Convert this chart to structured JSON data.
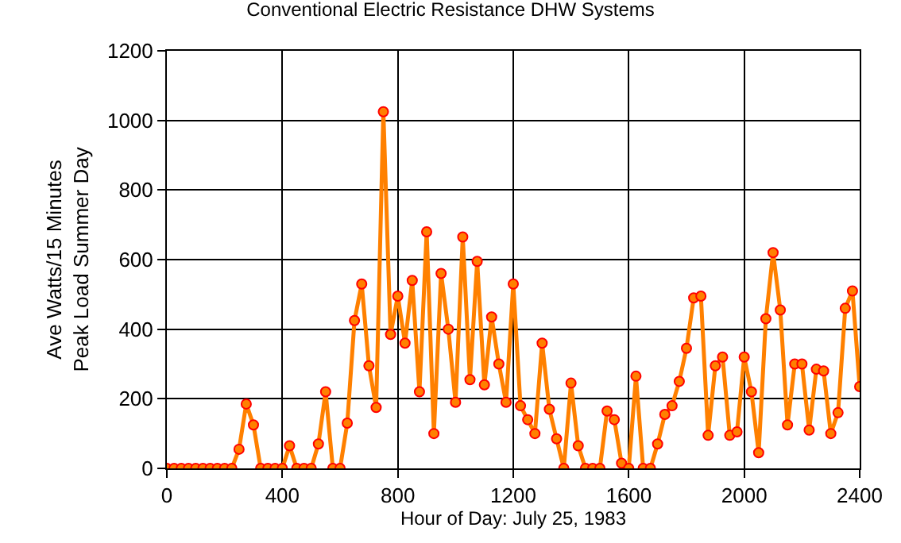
{
  "chart_data": {
    "type": "line",
    "title": "Conventional Electric Resistance DHW Systems",
    "xlabel": "Hour of Day: July 25, 1983",
    "ylabel": "Ave Watts/15 Minutes\nPeak Load Summer Day",
    "x": [
      0,
      25,
      50,
      75,
      100,
      125,
      150,
      175,
      200,
      225,
      250,
      275,
      300,
      325,
      350,
      375,
      400,
      425,
      450,
      475,
      500,
      525,
      550,
      575,
      600,
      625,
      650,
      675,
      700,
      725,
      750,
      775,
      800,
      825,
      850,
      875,
      900,
      925,
      950,
      975,
      1000,
      1025,
      1050,
      1075,
      1100,
      1125,
      1150,
      1175,
      1200,
      1225,
      1250,
      1275,
      1300,
      1325,
      1350,
      1375,
      1400,
      1425,
      1450,
      1475,
      1500,
      1525,
      1550,
      1575,
      1600,
      1625,
      1650,
      1675,
      1700,
      1725,
      1750,
      1775,
      1800,
      1825,
      1850,
      1875,
      1900,
      1925,
      1950,
      1975,
      2000,
      2025,
      2050,
      2075,
      2100,
      2125,
      2150,
      2175,
      2200,
      2225,
      2250,
      2275,
      2300,
      2325,
      2350,
      2375,
      2400
    ],
    "series": [
      {
        "color": "#ff8000",
        "values": [
          0,
          0,
          0,
          0,
          0,
          0,
          0,
          0,
          0,
          0,
          55,
          185,
          125,
          0,
          0,
          0,
          0,
          65,
          0,
          0,
          0,
          70,
          220,
          0,
          0,
          130,
          425,
          530,
          295,
          175,
          1025,
          385,
          495,
          360,
          540,
          220,
          680,
          100,
          560,
          400,
          190,
          665,
          255,
          595,
          240,
          435,
          300,
          190,
          530,
          180,
          140,
          100,
          360,
          170,
          85,
          0,
          245,
          65,
          0,
          0,
          0,
          165,
          140,
          15,
          0,
          265,
          0,
          0,
          70,
          155,
          180,
          250,
          345,
          490,
          495,
          95,
          295,
          320,
          95,
          105,
          320,
          220,
          45,
          430,
          620,
          455,
          125,
          300,
          300,
          110,
          285,
          280,
          100,
          160,
          460,
          510,
          235
        ]
      }
    ],
    "xlim": [
      0,
      2400
    ],
    "xticks": [
      0,
      400,
      800,
      1200,
      1600,
      2000,
      2400
    ],
    "ylim": [
      0,
      1200
    ],
    "yticks": [
      0,
      200,
      400,
      600,
      800,
      1000,
      1200
    ],
    "grid": true,
    "legend": false,
    "marker": "circle",
    "line_style": "solid"
  }
}
